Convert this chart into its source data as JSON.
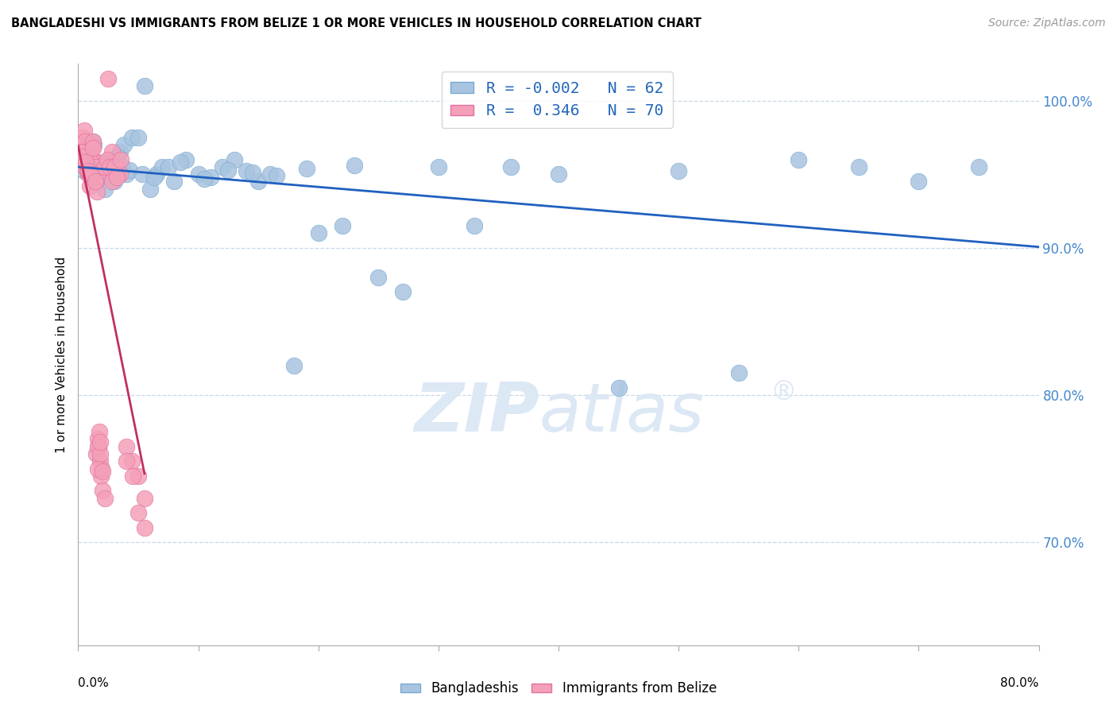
{
  "title": "BANGLADESHI VS IMMIGRANTS FROM BELIZE 1 OR MORE VEHICLES IN HOUSEHOLD CORRELATION CHART",
  "source": "Source: ZipAtlas.com",
  "ylabel": "1 or more Vehicles in Household",
  "blue_R": "-0.002",
  "blue_N": "62",
  "pink_R": "0.346",
  "pink_N": "70",
  "xlim": [
    0.0,
    80.0
  ],
  "ylim": [
    63.0,
    102.5
  ],
  "yticks": [
    70.0,
    80.0,
    90.0,
    100.0
  ],
  "ytick_labels": [
    "70.0%",
    "80.0%",
    "90.0%",
    "100.0%"
  ],
  "xtick_left": "0.0%",
  "xtick_right": "80.0%",
  "blue_scatter_color": "#a8c4e0",
  "blue_scatter_edge": "#7aaad0",
  "pink_scatter_color": "#f4a0b8",
  "pink_scatter_edge": "#e070a0",
  "blue_line_color": "#2060c0",
  "pink_line_color": "#c03060",
  "grid_color": "#c8d8e8",
  "watermark_color": "#dde8f5",
  "right_tick_color": "#4488cc",
  "blue_x": [
    0.5,
    1.0,
    1.2,
    1.5,
    1.8,
    2.0,
    2.2,
    2.5,
    2.8,
    3.0,
    3.2,
    3.5,
    3.8,
    4.0,
    4.5,
    5.0,
    5.5,
    6.0,
    6.5,
    7.0,
    8.0,
    9.0,
    10.0,
    11.0,
    12.0,
    13.0,
    14.0,
    15.0,
    16.0,
    18.0,
    20.0,
    22.0,
    25.0,
    27.0,
    30.0,
    33.0,
    36.0,
    40.0,
    45.0,
    50.0,
    55.0,
    60.0,
    65.0,
    70.0,
    75.0,
    1.3,
    1.7,
    2.3,
    2.7,
    3.3,
    3.7,
    4.3,
    5.3,
    6.3,
    7.5,
    8.5,
    10.5,
    12.5,
    14.5,
    16.5,
    19.0,
    23.0
  ],
  "blue_y": [
    95.2,
    96.0,
    97.2,
    95.5,
    94.8,
    95.0,
    94.0,
    95.5,
    96.0,
    94.5,
    95.8,
    96.5,
    97.0,
    95.0,
    97.5,
    97.5,
    101.0,
    94.0,
    95.0,
    95.5,
    94.5,
    96.0,
    95.0,
    94.8,
    95.5,
    96.0,
    95.2,
    94.5,
    95.0,
    82.0,
    91.0,
    91.5,
    88.0,
    87.0,
    95.5,
    91.5,
    95.5,
    95.0,
    80.5,
    95.2,
    81.5,
    96.0,
    95.5,
    94.5,
    95.5,
    97.0,
    95.2,
    95.8,
    95.5,
    96.2,
    95.5,
    95.3,
    95.0,
    94.8,
    95.5,
    95.8,
    94.7,
    95.3,
    95.1,
    94.9,
    95.4,
    95.6
  ],
  "pink_x": [
    0.2,
    0.3,
    0.4,
    0.5,
    0.5,
    0.6,
    0.7,
    0.8,
    0.9,
    1.0,
    1.1,
    1.2,
    1.3,
    1.4,
    1.5,
    1.6,
    1.7,
    1.8,
    1.9,
    2.0,
    2.2,
    2.5,
    2.8,
    3.0,
    3.2,
    3.5,
    4.0,
    4.5,
    5.0,
    5.5,
    0.35,
    0.55,
    0.75,
    0.95,
    1.15,
    1.35,
    1.55,
    1.75,
    1.95,
    2.15,
    0.45,
    0.65,
    0.85,
    1.05,
    1.25,
    1.45,
    1.65,
    1.85,
    2.05,
    0.25,
    0.42,
    0.62,
    0.82,
    1.02,
    1.22,
    1.42,
    1.62,
    1.82,
    2.02,
    2.22,
    2.42,
    2.62,
    2.82,
    3.02,
    3.22,
    3.52,
    4.02,
    4.52,
    5.02,
    5.52
  ],
  "pink_y": [
    96.0,
    97.0,
    97.5,
    98.0,
    96.5,
    95.5,
    96.5,
    95.0,
    95.5,
    96.5,
    97.0,
    95.0,
    96.0,
    94.5,
    76.0,
    77.0,
    76.5,
    75.5,
    74.5,
    73.5,
    73.0,
    101.5,
    96.5,
    95.0,
    95.5,
    95.0,
    76.5,
    75.5,
    74.5,
    73.0,
    96.2,
    97.2,
    95.2,
    94.2,
    96.8,
    95.8,
    93.8,
    77.5,
    75.0,
    95.5,
    96.5,
    95.8,
    95.2,
    95.8,
    97.2,
    95.5,
    76.5,
    76.0,
    95.3,
    96.5,
    96.2,
    95.8,
    95.2,
    95.0,
    96.8,
    94.5,
    75.0,
    76.8,
    74.8,
    95.5,
    96.0,
    95.5,
    94.5,
    95.5,
    94.8,
    96.0,
    75.5,
    74.5,
    72.0,
    71.0
  ]
}
